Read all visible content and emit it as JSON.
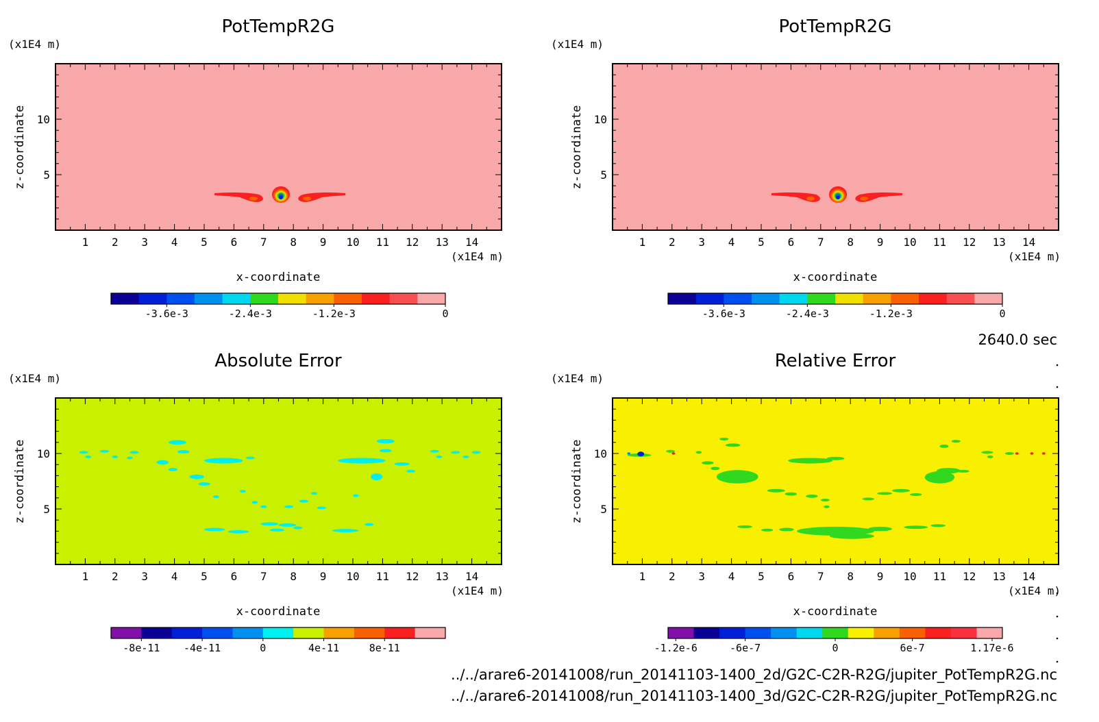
{
  "time_label": "2640.0 sec",
  "files": [
    "../../arare6-20141008/run_20141103-1400_2d/G2C-C2R-R2G/jupiter_PotTempR2G.nc",
    "../../arare6-20141008/run_20141103-1400_3d/G2C-C2R-R2G/jupiter_PotTempR2G.nc"
  ],
  "chart_data": [
    {
      "type": "heatmap",
      "title": "PotTempR2G",
      "xlabel": "x-coordinate",
      "ylabel": "z-coordinate",
      "x_unit": "(x1E4 m)",
      "y_unit": "(x1E4 m)",
      "xlim": [
        0,
        15
      ],
      "ylim": [
        0,
        15
      ],
      "x_ticks": [
        1,
        2,
        3,
        4,
        5,
        6,
        7,
        8,
        9,
        10,
        11,
        12,
        13,
        14
      ],
      "y_ticks": [
        5,
        10
      ],
      "background_value": 0,
      "features": [
        {
          "kind": "bubble",
          "x": 7.6,
          "z": 3.0,
          "min_value": -0.0042
        },
        {
          "kind": "filament",
          "x_from": 5.4,
          "x_to": 7.0,
          "z": 3.0,
          "value": -0.0009
        },
        {
          "kind": "filament",
          "x_from": 8.2,
          "x_to": 9.8,
          "z": 3.0,
          "value": -0.0009
        }
      ],
      "colorbar": {
        "colors": [
          "#0a0096",
          "#0020d8",
          "#0050f0",
          "#0090f0",
          "#00d8f0",
          "#30d820",
          "#f0e000",
          "#f8a000",
          "#f86000",
          "#f82020",
          "#f85050",
          "#f8a8a8"
        ],
        "tick_labels": [
          "-3.6e-3",
          "-2.4e-3",
          "-1.2e-3",
          "0"
        ]
      }
    },
    {
      "type": "heatmap",
      "title": "PotTempR2G",
      "xlabel": "x-coordinate",
      "ylabel": "z-coordinate",
      "x_unit": "(x1E4 m)",
      "y_unit": "(x1E4 m)",
      "xlim": [
        0,
        15
      ],
      "ylim": [
        0,
        15
      ],
      "x_ticks": [
        1,
        2,
        3,
        4,
        5,
        6,
        7,
        8,
        9,
        10,
        11,
        12,
        13,
        14
      ],
      "y_ticks": [
        5,
        10
      ],
      "background_value": 0,
      "features": [
        {
          "kind": "bubble",
          "x": 7.6,
          "z": 3.0,
          "min_value": -0.0042
        },
        {
          "kind": "filament",
          "x_from": 5.4,
          "x_to": 7.0,
          "z": 3.0,
          "value": -0.0009
        },
        {
          "kind": "filament",
          "x_from": 8.2,
          "x_to": 9.8,
          "z": 3.0,
          "value": -0.0009
        }
      ],
      "colorbar": {
        "colors": [
          "#0a0096",
          "#0020d8",
          "#0050f0",
          "#0090f0",
          "#00d8f0",
          "#30d820",
          "#f0e000",
          "#f8a000",
          "#f86000",
          "#f82020",
          "#f85050",
          "#f8a8a8"
        ],
        "tick_labels": [
          "-3.6e-3",
          "-2.4e-3",
          "-1.2e-3",
          "0"
        ]
      }
    },
    {
      "type": "heatmap",
      "title": "Absolute Error",
      "xlabel": "x-coordinate",
      "ylabel": "z-coordinate",
      "x_unit": "(x1E4 m)",
      "y_unit": "(x1E4 m)",
      "xlim": [
        0,
        15
      ],
      "ylim": [
        0,
        15
      ],
      "x_ticks": [
        1,
        2,
        3,
        4,
        5,
        6,
        7,
        8,
        9,
        10,
        11,
        12,
        13,
        14
      ],
      "y_ticks": [
        5,
        10
      ],
      "background_value": 0,
      "patch_value": -2e-11,
      "patches": [
        [
          0.8,
          10.0,
          0.3,
          0.2
        ],
        [
          1.5,
          10.1,
          0.3,
          0.2
        ],
        [
          2.5,
          10.0,
          0.3,
          0.2
        ],
        [
          1.0,
          9.6,
          0.2,
          0.2
        ],
        [
          1.9,
          9.6,
          0.2,
          0.2
        ],
        [
          2.4,
          9.5,
          0.2,
          0.2
        ],
        [
          3.8,
          10.8,
          0.6,
          0.4
        ],
        [
          4.1,
          10.0,
          0.4,
          0.3
        ],
        [
          3.4,
          9.0,
          0.4,
          0.4
        ],
        [
          3.8,
          8.4,
          0.3,
          0.3
        ],
        [
          5.0,
          9.1,
          1.3,
          0.5
        ],
        [
          6.4,
          9.5,
          0.3,
          0.2
        ],
        [
          4.5,
          7.7,
          0.5,
          0.4
        ],
        [
          4.8,
          7.1,
          0.4,
          0.3
        ],
        [
          5.3,
          6.0,
          0.2,
          0.2
        ],
        [
          6.2,
          6.5,
          0.2,
          0.2
        ],
        [
          6.6,
          5.5,
          0.2,
          0.2
        ],
        [
          6.9,
          5.1,
          0.2,
          0.2
        ],
        [
          5.0,
          3.0,
          0.7,
          0.3
        ],
        [
          5.8,
          2.8,
          0.7,
          0.3
        ],
        [
          6.9,
          3.5,
          0.6,
          0.3
        ],
        [
          7.5,
          3.4,
          0.6,
          0.3
        ],
        [
          7.2,
          3.0,
          0.5,
          0.2
        ],
        [
          8.0,
          3.2,
          0.3,
          0.2
        ],
        [
          8.2,
          5.6,
          0.3,
          0.2
        ],
        [
          7.7,
          5.1,
          0.3,
          0.2
        ],
        [
          8.8,
          5.0,
          0.3,
          0.2
        ],
        [
          8.6,
          6.3,
          0.2,
          0.2
        ],
        [
          9.3,
          2.9,
          0.9,
          0.3
        ],
        [
          10.4,
          3.5,
          0.3,
          0.2
        ],
        [
          9.5,
          9.1,
          1.6,
          0.5
        ],
        [
          10.8,
          10.9,
          0.6,
          0.4
        ],
        [
          10.9,
          10.1,
          0.4,
          0.3
        ],
        [
          10.6,
          7.6,
          0.4,
          0.6
        ],
        [
          11.4,
          8.9,
          0.5,
          0.3
        ],
        [
          11.8,
          8.3,
          0.3,
          0.2
        ],
        [
          12.6,
          10.1,
          0.3,
          0.2
        ],
        [
          13.3,
          10.0,
          0.3,
          0.2
        ],
        [
          14.0,
          10.0,
          0.3,
          0.2
        ],
        [
          12.8,
          9.6,
          0.2,
          0.2
        ],
        [
          13.7,
          9.6,
          0.2,
          0.2
        ],
        [
          10.0,
          6.1,
          0.2,
          0.2
        ]
      ],
      "colorbar": {
        "colors": [
          "#8010a8",
          "#0a0096",
          "#0020d8",
          "#0050f0",
          "#0090f0",
          "#00f0f0",
          "#c8f000",
          "#f8a000",
          "#f86000",
          "#f82020",
          "#f8a8a8"
        ],
        "tick_labels": [
          "-8e-11",
          "-4e-11",
          "0",
          "4e-11",
          "8e-11"
        ]
      }
    },
    {
      "type": "heatmap",
      "title": "Relative Error",
      "xlabel": "x-coordinate",
      "ylabel": "z-coordinate",
      "x_unit": "(x1E4 m)",
      "y_unit": "(x1E4 m)",
      "xlim": [
        0,
        15
      ],
      "ylim": [
        0,
        15
      ],
      "x_ticks": [
        1,
        2,
        3,
        4,
        5,
        6,
        7,
        8,
        9,
        10,
        11,
        12,
        13,
        14
      ],
      "y_ticks": [
        5,
        10
      ],
      "background_value": 0,
      "patch_value": -1.5e-07,
      "patches": [
        [
          0.5,
          9.7,
          0.8,
          0.3
        ],
        [
          1.8,
          10.1,
          0.3,
          0.2
        ],
        [
          2.8,
          10.0,
          0.2,
          0.2
        ],
        [
          3.6,
          11.2,
          0.3,
          0.2
        ],
        [
          3.8,
          10.6,
          0.5,
          0.3
        ],
        [
          3.0,
          9.0,
          0.4,
          0.3
        ],
        [
          3.3,
          8.5,
          0.3,
          0.3
        ],
        [
          3.5,
          7.3,
          1.4,
          1.2
        ],
        [
          3.8,
          8.0,
          0.8,
          0.5
        ],
        [
          5.2,
          6.5,
          0.6,
          0.3
        ],
        [
          5.8,
          6.2,
          0.4,
          0.3
        ],
        [
          6.5,
          6.0,
          0.4,
          0.3
        ],
        [
          5.9,
          9.1,
          1.5,
          0.5
        ],
        [
          7.2,
          9.4,
          0.6,
          0.3
        ],
        [
          4.2,
          3.3,
          0.5,
          0.2
        ],
        [
          5.0,
          3.0,
          0.4,
          0.2
        ],
        [
          5.6,
          3.0,
          0.5,
          0.3
        ],
        [
          6.2,
          2.6,
          2.6,
          0.8
        ],
        [
          7.3,
          2.3,
          1.5,
          0.5
        ],
        [
          8.6,
          3.0,
          0.8,
          0.4
        ],
        [
          9.8,
          3.2,
          0.8,
          0.3
        ],
        [
          10.7,
          3.4,
          0.5,
          0.2
        ],
        [
          7.0,
          5.7,
          0.3,
          0.2
        ],
        [
          7.1,
          5.1,
          0.2,
          0.2
        ],
        [
          8.4,
          5.8,
          0.4,
          0.2
        ],
        [
          8.9,
          6.3,
          0.5,
          0.2
        ],
        [
          9.4,
          6.5,
          0.6,
          0.3
        ],
        [
          10.0,
          6.2,
          0.4,
          0.2
        ],
        [
          10.5,
          7.3,
          1.0,
          1.1
        ],
        [
          10.9,
          8.2,
          0.8,
          0.5
        ],
        [
          11.6,
          8.3,
          0.4,
          0.2
        ],
        [
          11.0,
          10.5,
          0.3,
          0.3
        ],
        [
          11.4,
          11.0,
          0.3,
          0.2
        ],
        [
          12.4,
          10.0,
          0.4,
          0.2
        ],
        [
          12.6,
          9.6,
          0.2,
          0.2
        ],
        [
          13.2,
          9.9,
          0.3,
          0.2
        ]
      ],
      "accent_markers": [
        {
          "x": 0.95,
          "z": 9.95,
          "value": -1.1e-06
        },
        {
          "x": 0.55,
          "z": 10.0,
          "value": -7e-07
        },
        {
          "x": 2.05,
          "z": 10.0,
          "value": 1e-06
        },
        {
          "x": 13.6,
          "z": 10.0,
          "value": 1e-06
        },
        {
          "x": 14.1,
          "z": 10.0,
          "value": 1e-06
        },
        {
          "x": 14.5,
          "z": 10.0,
          "value": 1e-06
        }
      ],
      "colorbar": {
        "colors": [
          "#8010a8",
          "#0a0096",
          "#0020d8",
          "#0050f0",
          "#0090f0",
          "#00d8f0",
          "#30d820",
          "#f8f000",
          "#f8a000",
          "#f86000",
          "#f82020",
          "#f83040",
          "#f8a8a8"
        ],
        "tick_labels": [
          "-1.2e-6",
          "-6e-7",
          "0",
          "6e-7",
          "1.17e-6"
        ]
      }
    }
  ]
}
